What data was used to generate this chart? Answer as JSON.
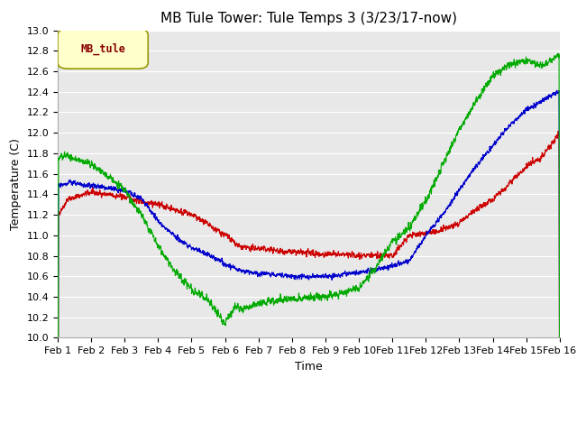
{
  "title": "MB Tule Tower: Tule Temps 3 (3/23/17-now)",
  "xlabel": "Time",
  "ylabel": "Temperature (C)",
  "ylim": [
    10.0,
    13.0
  ],
  "yticks": [
    10.0,
    10.2,
    10.4,
    10.6,
    10.8,
    11.0,
    11.2,
    11.4,
    11.6,
    11.8,
    12.0,
    12.2,
    12.4,
    12.6,
    12.8,
    13.0
  ],
  "xtick_labels": [
    "Feb 1",
    "Feb 2",
    "Feb 3",
    "Feb 4",
    "Feb 5",
    "Feb 6",
    "Feb 7",
    "Feb 8",
    "Feb 9",
    "Feb 10",
    "Feb 11",
    "Feb 12",
    "Feb 13",
    "Feb 14",
    "Feb 15",
    "Feb 16"
  ],
  "series": {
    "Tul3_Ts-8": {
      "color": "#cc0000"
    },
    "Tul3_Ts-2": {
      "color": "#0000cc"
    },
    "Tul3_Tw+4": {
      "color": "#00aa00"
    }
  },
  "legend_box_color": "#ffffcc",
  "legend_box_edge": "#999900",
  "legend_box_text": "MB_tule",
  "legend_box_text_color": "#880000",
  "fig_bg_color": "#ffffff",
  "plot_bg_color": "#e8e8e8",
  "grid_color": "#ffffff",
  "title_fontsize": 11,
  "axis_fontsize": 9,
  "tick_fontsize": 8
}
